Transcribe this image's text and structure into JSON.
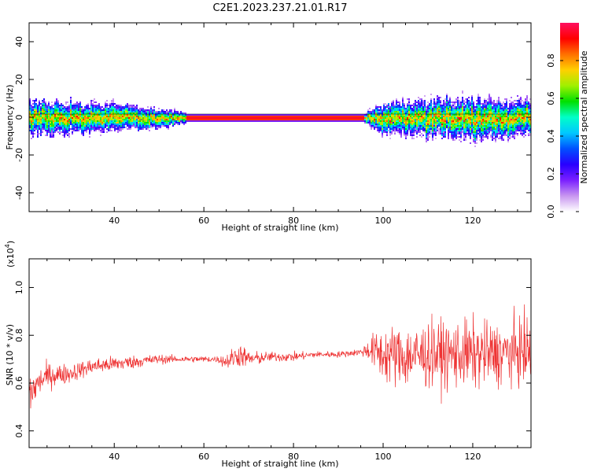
{
  "title": "C2E1.2023.237.21.01.R17",
  "chart_data": [
    {
      "type": "heatmap",
      "xlabel": "Height of straight line (km)",
      "ylabel": "Frequency (Hz)",
      "xlim": [
        21,
        133
      ],
      "ylim": [
        -50,
        50
      ],
      "xticks": [
        40,
        60,
        80,
        100,
        120
      ],
      "yticks": [
        -40,
        -20,
        0,
        20,
        40
      ],
      "colorbar": {
        "label": "Normalized spectral amplitude",
        "ticks": [
          0.0,
          0.2,
          0.4,
          0.6,
          0.8
        ],
        "range": [
          0,
          1
        ],
        "colors": [
          "#ffffff",
          "#c896f0",
          "#7a1fff",
          "#2800ff",
          "#0050ff",
          "#00c8ff",
          "#00ffc8",
          "#00e000",
          "#a0f000",
          "#ffd000",
          "#ff7000",
          "#ff0000",
          "#ff1060"
        ]
      },
      "ridge_center_hz": 0,
      "spread_hz": [
        {
          "x": 21,
          "halfwidth": 10
        },
        {
          "x": 40,
          "halfwidth": 8
        },
        {
          "x": 52,
          "halfwidth": 5
        },
        {
          "x": 58,
          "halfwidth": 2
        },
        {
          "x": 95,
          "halfwidth": 2
        },
        {
          "x": 100,
          "halfwidth": 9
        },
        {
          "x": 120,
          "halfwidth": 12
        },
        {
          "x": 133,
          "halfwidth": 10
        }
      ]
    },
    {
      "type": "line",
      "xlabel": "Height of straight line (km)",
      "ylabel": "SNR (10 * v/v)",
      "scale_note": "(x10",
      "scale_exp": "4",
      "xlim": [
        21,
        133
      ],
      "ylim": [
        0.33,
        1.12
      ],
      "xticks": [
        40,
        60,
        80,
        100,
        120
      ],
      "yticks": [
        0.4,
        0.6,
        0.8,
        1.0
      ],
      "ytick_labels": [
        "0.4",
        "0.6",
        "0.8",
        "1.0"
      ],
      "color": "#ee3333",
      "series": [
        {
          "values_note": "mean and noise envelope per height",
          "x": [
            21,
            23,
            25,
            30,
            35,
            40,
            45,
            50,
            55,
            60,
            63,
            65,
            68,
            70,
            75,
            80,
            85,
            90,
            95,
            97,
            100,
            105,
            110,
            115,
            120,
            125,
            130,
            133
          ],
          "mean": [
            0.55,
            0.6,
            0.63,
            0.64,
            0.67,
            0.68,
            0.69,
            0.7,
            0.7,
            0.7,
            0.7,
            0.69,
            0.72,
            0.7,
            0.71,
            0.71,
            0.72,
            0.72,
            0.73,
            0.74,
            0.72,
            0.71,
            0.72,
            0.72,
            0.72,
            0.72,
            0.73,
            0.73
          ],
          "envelope": [
            0.16,
            0.09,
            0.08,
            0.06,
            0.05,
            0.05,
            0.04,
            0.03,
            0.02,
            0.02,
            0.02,
            0.05,
            0.08,
            0.05,
            0.03,
            0.03,
            0.02,
            0.02,
            0.02,
            0.08,
            0.18,
            0.2,
            0.21,
            0.21,
            0.22,
            0.2,
            0.21,
            0.2
          ]
        }
      ]
    }
  ]
}
